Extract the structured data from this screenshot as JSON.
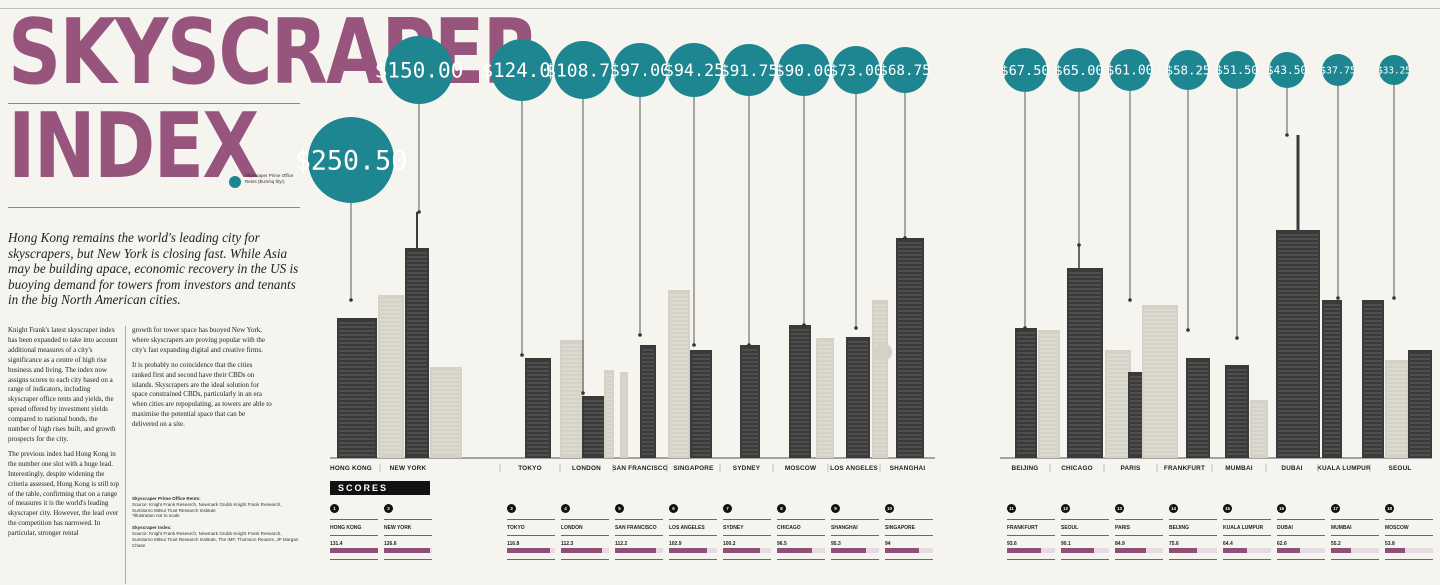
{
  "title": {
    "line1": "SKYSCRAPER",
    "line2": "INDEX"
  },
  "legend": {
    "text": "Skyscraper Prime Office Rents ($US/sq ft/yr)",
    "color": "#1d8690",
    "icon": "teal-dot"
  },
  "lead": "Hong Kong remains the world's leading city for skyscrapers, but New York is closing fast. While Asia may be building apace, economic recovery in the US is buoying demand for towers from investors and tenants in the big North American cities.",
  "body": {
    "col1_p1": "Knight Frank's latest skyscraper index has been expanded to take into account additional measures of a city's significance as a centre of high rise business and living. The index now assigns scores to each city based on a range of indicators, including skyscraper office rents and yields, the spread offered by investment yields compared to national bonds, the number of high rises built, and growth prospects for the city.",
    "col1_p2": "The previous index had Hong Kong in the number one slot with a huge lead. Interestingly, despite widening the criteria assessed, Hong Kong is still top of the table, confirming that on a range of measures it is the world's leading skyscraper city. However, the lead over the competition has narrowed. In particular, stronger rental",
    "col2_p1": "growth for tower space has buoyed New York, where skyscrapers are proving popular with the city's fast expanding digital and creative firms.",
    "col2_p2": "It is probably no coincidence that the cities ranked first and second have their CBDs on islands. Skyscrapers are the ideal solution for space constrained CBDs, particularly in an era when cities are repopulating, as towers are able to maximise the potential space that can be delivered on a site."
  },
  "sources": {
    "h1": "Skyscraper Prime Office Rents:",
    "s1": "Source: Knight Frank Research, Newmark Grubb Knight Frank Research, Sumitomo Mitsui Trust Research Institute",
    "n1": "*Illustration not to scale",
    "h2": "Skyscraper Index:",
    "s2": "Source: Knight Frank Research, Newmark Grubb Knight Frank Research, Sumitomo Mitsui Trust Research Institute, The IMF, Thomson Reuters, JP Morgan Chase"
  },
  "scores_heading": "SCORES",
  "colors": {
    "accent": "#1d8690",
    "title": "#97557e",
    "bar": "#8f4f76",
    "tower_dark": "#3a3a3a",
    "tower_light": "#d4d2c6"
  },
  "chart_data": [
    {
      "type": "bar",
      "series_label": "Skyscraper Prime Office Rents ($US/sq ft/yr)",
      "categories": [
        "HONG KONG",
        "NEW YORK",
        "TOKYO",
        "LONDON",
        "SAN FRANCISCO",
        "SINGAPORE",
        "SYDNEY",
        "MOSCOW",
        "LOS ANGELES",
        "SHANGHAI",
        "BEIJING",
        "CHICAGO",
        "PARIS",
        "FRANKFURT",
        "MUMBAI",
        "DUBAI",
        "KUALA LUMPUR",
        "SEOUL"
      ],
      "labels": [
        "$250.50",
        "$150.00",
        "$124.00",
        "$108.75",
        "$97.00",
        "$94.25",
        "$91.75",
        "$90.00",
        "$73.00",
        "$68.75",
        "$67.50",
        "$65.00",
        "$61.00",
        "$58.25",
        "$51.50",
        "$43.50",
        "$37.75",
        "$33.25"
      ],
      "values": [
        250.5,
        150,
        124,
        108.75,
        97,
        94.25,
        91.75,
        90,
        73,
        68.75,
        67.5,
        65,
        61,
        58.25,
        51.5,
        43.5,
        37.75,
        33.25
      ]
    },
    {
      "type": "bar",
      "title": "SCORES",
      "categories": [
        "HONG KONG",
        "NEW YORK",
        "TOKYO",
        "LONDON",
        "SAN FRANCISCO",
        "LOS ANGELES",
        "SYDNEY",
        "CHICAGO",
        "SHANGHAI",
        "SINGAPORE",
        "FRANKFURT",
        "SEOUL",
        "PARIS",
        "BEIJING",
        "KUALA LUMPUR",
        "DUBAI",
        "MUMBAI",
        "MOSCOW"
      ],
      "ranks": [
        "1",
        "2",
        "3",
        "4",
        "5",
        "6",
        "7",
        "8",
        "9",
        "10",
        "11",
        "12",
        "13",
        "14",
        "15",
        "16",
        "17",
        "18"
      ],
      "labels": [
        "131.4",
        "126.6",
        "116.8",
        "112.3",
        "112.2",
        "102.9",
        "100.2",
        "96.5",
        "95.3",
        "94",
        "93.6",
        "90.1",
        "84.9",
        "75.6",
        "64.4",
        "62.6",
        "55.2",
        "53.8"
      ],
      "values": [
        131.4,
        126.6,
        116.8,
        112.3,
        112.2,
        102.9,
        100.2,
        96.5,
        95.3,
        94,
        93.6,
        90.1,
        84.9,
        75.6,
        64.4,
        62.6,
        55.2,
        53.8
      ]
    }
  ]
}
